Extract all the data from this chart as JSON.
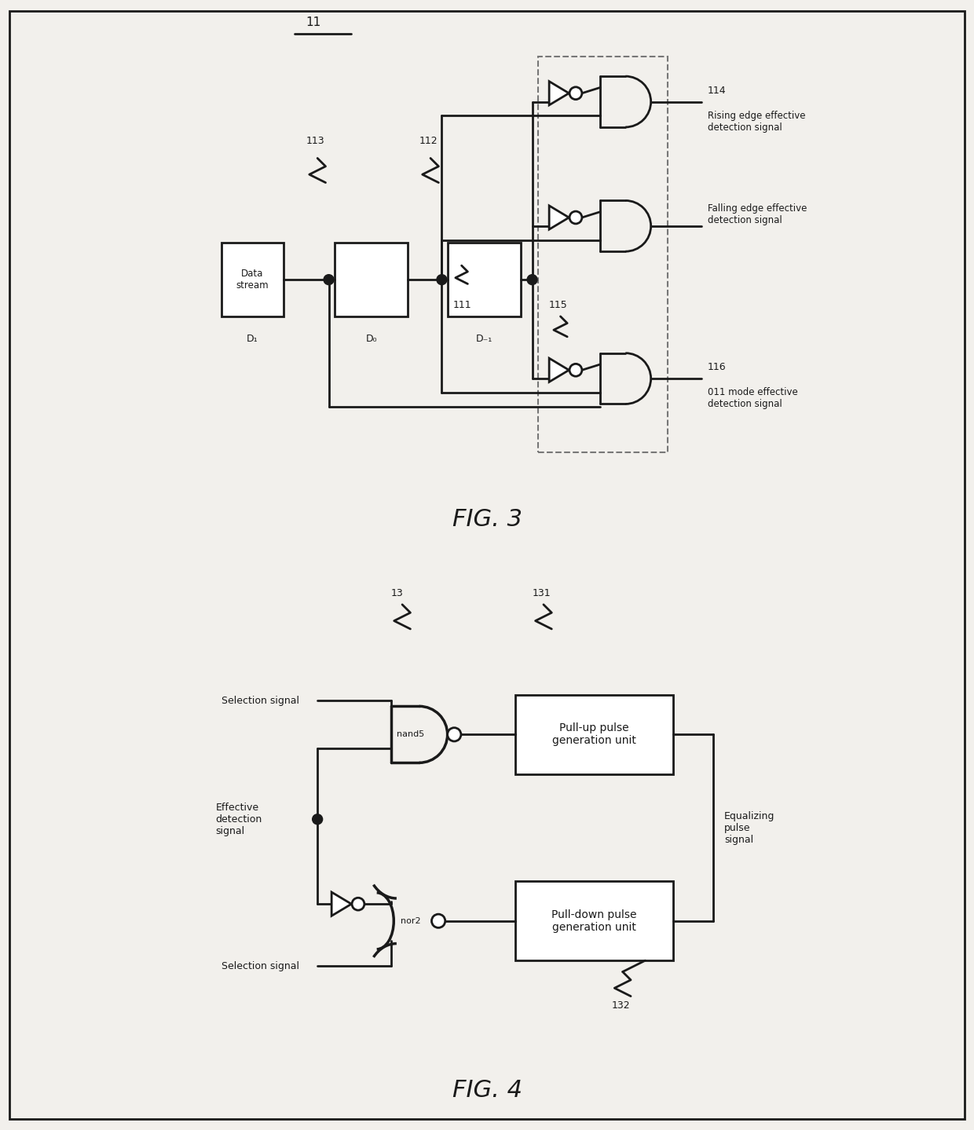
{
  "fig_width": 12.4,
  "fig_height": 14.39,
  "bg_color": "#f2f0ec",
  "line_color": "#1a1a1a",
  "lw": 2.0,
  "fig3_title": "FIG. 3",
  "fig4_title": "FIG. 4",
  "label_11": "11",
  "label_111": "111",
  "label_112": "112",
  "label_113": "113",
  "label_114": "114",
  "label_115": "115",
  "label_116": "116",
  "label_D1": "D₁",
  "label_D0": "D₀",
  "label_Dm1": "D₋₁",
  "label_data_stream": "Data\nstream",
  "label_rising": "Rising edge effective\ndetection signal",
  "label_falling": "Falling edge effective\ndetection signal",
  "label_011": "011 mode effective\ndetection signal",
  "label_13": "13",
  "label_131": "131",
  "label_132": "132",
  "label_sel_top": "Selection signal",
  "label_eff_det": "Effective\ndetection\nsignal",
  "label_sel_bot": "Selection signal",
  "label_nand5": "nand5",
  "label_nor2": "nor2",
  "label_pullup": "Pull-up pulse\ngeneration unit",
  "label_pulldown": "Pull-down pulse\ngeneration unit",
  "label_eq": "Equalizing\npulse\nsignal"
}
